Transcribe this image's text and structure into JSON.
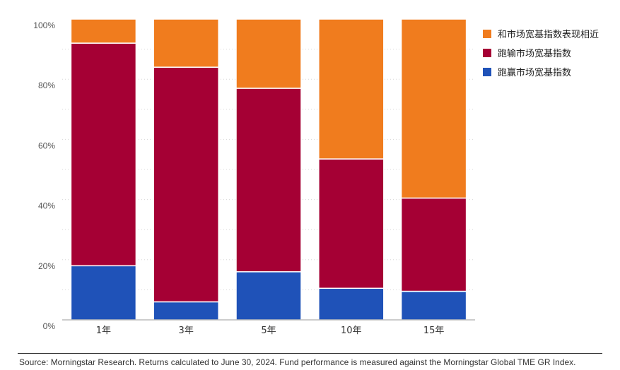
{
  "chart_data": {
    "type": "bar",
    "stacked": true,
    "categories": [
      "1年",
      "3年",
      "5年",
      "10年",
      "15年"
    ],
    "series": [
      {
        "name": "跑赢市场宽基指数",
        "color": "#1f52b8",
        "values": [
          18,
          6,
          16,
          10.5,
          9.5
        ]
      },
      {
        "name": "跑输市场宽基指数",
        "color": "#a50034",
        "values": [
          74,
          78,
          61,
          43,
          31
        ]
      },
      {
        "name": "和市场宽基指数表现相近",
        "color": "#f07c1e",
        "values": [
          8,
          16,
          23,
          46.5,
          59.5
        ]
      }
    ],
    "ylim": [
      0,
      100
    ],
    "yticks": [
      0,
      20,
      40,
      60,
      80,
      100
    ],
    "ytick_labels": [
      "0%",
      "20%",
      "40%",
      "60%",
      "80%",
      "100%"
    ],
    "legend_position": "right",
    "title": "",
    "xlabel": "",
    "ylabel": ""
  },
  "legend": [
    {
      "label": "和市场宽基指数表现相近",
      "color": "#f07c1e"
    },
    {
      "label": "跑输市场宽基指数",
      "color": "#a50034"
    },
    {
      "label": "跑赢市场宽基指数",
      "color": "#1f52b8"
    }
  ],
  "footer": {
    "source": "Source: Morningstar Research. Returns calculated to June 30, 2024. Fund performance is measured against the Morningstar Global TME GR Index."
  }
}
